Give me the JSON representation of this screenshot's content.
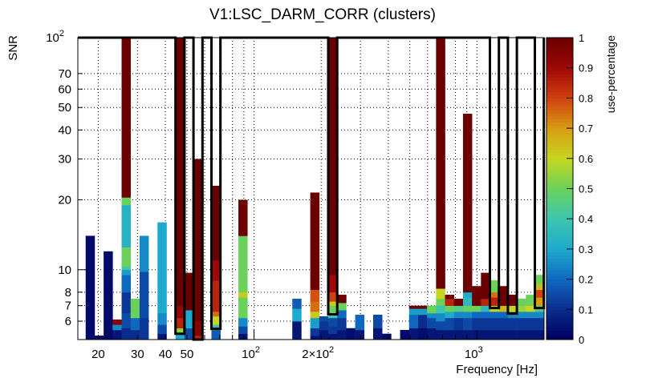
{
  "chart_data": {
    "type": "heatmap",
    "title": "V1:LSC_DARM_CORR (clusters)",
    "xlabel": "Frequency [Hz]",
    "ylabel": "SNR",
    "zlabel": "use-percentage",
    "xscale": "log",
    "yscale": "log",
    "xlim": [
      16.2,
      2000
    ],
    "ylim": [
      5,
      100
    ],
    "zlim": [
      0,
      1
    ],
    "grid": true,
    "x_tick_labels": [
      {
        "value": 20,
        "label": "20"
      },
      {
        "value": 30,
        "label": "30"
      },
      {
        "value": 40,
        "label": "40"
      },
      {
        "value": 50,
        "label": "50"
      },
      {
        "value": 100,
        "label": "10",
        "exp": "2"
      },
      {
        "value": 200,
        "label": "2×10",
        "exp": "2"
      },
      {
        "value": 1000,
        "label": "10",
        "exp": "3"
      }
    ],
    "x_grid_values": [
      20,
      30,
      40,
      50,
      60,
      70,
      80,
      90,
      100,
      200,
      300,
      400,
      500,
      600,
      700,
      800,
      900,
      1000
    ],
    "y_tick_labels": [
      {
        "value": 6,
        "label": "6"
      },
      {
        "value": 7,
        "label": "7"
      },
      {
        "value": 8,
        "label": "8"
      },
      {
        "value": 10,
        "label": "10"
      },
      {
        "value": 20,
        "label": "20"
      },
      {
        "value": 30,
        "label": "30"
      },
      {
        "value": 40,
        "label": "40"
      },
      {
        "value": 50,
        "label": "50"
      },
      {
        "value": 60,
        "label": "60"
      },
      {
        "value": 70,
        "label": "70"
      },
      {
        "value": 100,
        "label": "10",
        "exp": "2"
      }
    ],
    "z_tick_labels": [
      "0",
      "0.1",
      "0.2",
      "0.3",
      "0.4",
      "0.5",
      "0.6",
      "0.7",
      "0.8",
      "0.9",
      "1"
    ],
    "bins": {
      "log10_freq_start": 1.2446,
      "log10_freq_width": 0.0403,
      "count": 51
    },
    "colormap": [
      [
        0.0,
        "#000060"
      ],
      [
        0.1,
        "#0a2c8c"
      ],
      [
        0.2,
        "#0f68bf"
      ],
      [
        0.3,
        "#1eaacc"
      ],
      [
        0.4,
        "#3cc6b0"
      ],
      [
        0.5,
        "#6ad25a"
      ],
      [
        0.6,
        "#c6d620"
      ],
      [
        0.7,
        "#d89c12"
      ],
      [
        0.8,
        "#d04010"
      ],
      [
        0.9,
        "#a00808"
      ],
      [
        1.0,
        "#6a0000"
      ]
    ],
    "columns": [
      {
        "bin": 0,
        "cells": [
          [
            14,
            0.02
          ]
        ]
      },
      {
        "bin": 1,
        "cells": [
          [
            5.2,
            0.02
          ]
        ]
      },
      {
        "bin": 2,
        "cells": [
          [
            12,
            0.02
          ]
        ]
      },
      {
        "bin": 3,
        "cells": [
          [
            5.5,
            0.05
          ],
          [
            5.8,
            0.25
          ],
          [
            6.1,
            0.95
          ]
        ]
      },
      {
        "bin": 4,
        "cells": [
          [
            5.6,
            0.1
          ],
          [
            6.5,
            0.15
          ],
          [
            8,
            0.12
          ],
          [
            9.5,
            0.2
          ],
          [
            10,
            0.28
          ],
          [
            10.3,
            0.4
          ],
          [
            12.5,
            0.5
          ],
          [
            19,
            0.33
          ],
          [
            20.5,
            0.5
          ],
          [
            100,
            1
          ]
        ]
      },
      {
        "bin": 5,
        "cells": [
          [
            5.5,
            0.1
          ],
          [
            6.2,
            0.2
          ],
          [
            7.5,
            0.5
          ]
        ]
      },
      {
        "bin": 6,
        "cells": [
          [
            6.2,
            0.12
          ],
          [
            9.8,
            0.15
          ],
          [
            14,
            0.25
          ]
        ]
      },
      {
        "bin": 8,
        "cells": [
          [
            5.3,
            0.05
          ],
          [
            5.8,
            0.15
          ],
          [
            6.5,
            0.25
          ],
          [
            16,
            0.3
          ]
        ]
      },
      {
        "bin": 10,
        "cells": [
          [
            5.3,
            0.3
          ],
          [
            5.6,
            0.55
          ],
          [
            6.2,
            0.85
          ],
          [
            7,
            0.92
          ],
          [
            100,
            1
          ]
        ]
      },
      {
        "bin": 11,
        "cells": [
          [
            5.6,
            0.15
          ],
          [
            6.7,
            0.3
          ],
          [
            9.7,
            1
          ]
        ]
      },
      {
        "bin": 12,
        "cells": [
          [
            5.2,
            0.85
          ],
          [
            6.0,
            0.95
          ],
          [
            30,
            1
          ]
        ]
      },
      {
        "bin": 14,
        "cells": [
          [
            5.5,
            0.18
          ],
          [
            5.8,
            0.4
          ],
          [
            6.3,
            0.6
          ],
          [
            6.6,
            0.75
          ],
          [
            9,
            0.85
          ],
          [
            11,
            0.9
          ],
          [
            23,
            1
          ]
        ]
      },
      {
        "bin": 17,
        "cells": [
          [
            5.3,
            0.05
          ],
          [
            5.7,
            0.15
          ],
          [
            6.2,
            0.25
          ],
          [
            7.6,
            0.5
          ],
          [
            8,
            0.62
          ],
          [
            14,
            0.5
          ],
          [
            20,
            1
          ]
        ]
      },
      {
        "bin": 23,
        "cells": [
          [
            6,
            0.05
          ],
          [
            6.8,
            0.3
          ],
          [
            7.5,
            0.18
          ]
        ]
      },
      {
        "bin": 25,
        "cells": [
          [
            5.2,
            0.05
          ],
          [
            5.6,
            0.12
          ],
          [
            6.2,
            0.28
          ],
          [
            6.6,
            0.62
          ],
          [
            7.3,
            0.75
          ],
          [
            8.2,
            0.78
          ],
          [
            21.5,
            1
          ]
        ]
      },
      {
        "bin": 26,
        "cells": [
          [
            5.5,
            0.05
          ],
          [
            6.0,
            0.12
          ],
          [
            6.3,
            0.15
          ]
        ]
      },
      {
        "bin": 27,
        "cells": [
          [
            5.3,
            0.05
          ],
          [
            5.7,
            0.12
          ],
          [
            6.2,
            0.15
          ],
          [
            6.5,
            0.4
          ],
          [
            7,
            0.5
          ],
          [
            7.3,
            0.62
          ],
          [
            8,
            0.8
          ],
          [
            9.5,
            0.9
          ],
          [
            100,
            1
          ]
        ]
      },
      {
        "bin": 28,
        "cells": [
          [
            5.5,
            0.05
          ],
          [
            6.2,
            0.12
          ],
          [
            6.7,
            0.2
          ],
          [
            7.2,
            0.5
          ],
          [
            7.8,
            1
          ]
        ]
      },
      {
        "bin": 29,
        "cells": [
          [
            5.6,
            0.03
          ]
        ]
      },
      {
        "bin": 30,
        "cells": [
          [
            5.5,
            0.05
          ],
          [
            6.4,
            0.2
          ]
        ]
      },
      {
        "bin": 32,
        "cells": [
          [
            5.6,
            0.05
          ],
          [
            6.4,
            0.15
          ]
        ]
      },
      {
        "bin": 33,
        "cells": [
          [
            5.3,
            0.02
          ]
        ]
      },
      {
        "bin": 35,
        "cells": [
          [
            5.5,
            0.02
          ]
        ]
      },
      {
        "bin": 36,
        "cells": [
          [
            5.6,
            0.05
          ],
          [
            6.4,
            0.2
          ],
          [
            6.8,
            0.28
          ],
          [
            7,
            1
          ]
        ]
      },
      {
        "bin": 37,
        "cells": [
          [
            5.6,
            0.03
          ],
          [
            6.4,
            0.1
          ],
          [
            6.8,
            0.28
          ],
          [
            7,
            1
          ]
        ]
      },
      {
        "bin": 38,
        "cells": [
          [
            5.6,
            0.05
          ],
          [
            6.2,
            0.15
          ],
          [
            6.5,
            0.25
          ],
          [
            7,
            0.5
          ]
        ]
      },
      {
        "bin": 39,
        "cells": [
          [
            5.5,
            0.05
          ],
          [
            6.0,
            0.15
          ],
          [
            6.5,
            0.25
          ],
          [
            7.0,
            0.4
          ],
          [
            7.5,
            0.5
          ],
          [
            8.3,
            0.6
          ],
          [
            100,
            1
          ]
        ]
      },
      {
        "bin": 40,
        "cells": [
          [
            5.5,
            0.05
          ],
          [
            6.2,
            0.15
          ],
          [
            6.6,
            0.3
          ],
          [
            7,
            0.5
          ],
          [
            7.5,
            0.85
          ],
          [
            7.8,
            1
          ]
        ]
      },
      {
        "bin": 41,
        "cells": [
          [
            5.5,
            0.05
          ],
          [
            6.2,
            0.12
          ],
          [
            6.6,
            0.25
          ],
          [
            7,
            0.45
          ],
          [
            7.5,
            1
          ]
        ]
      },
      {
        "bin": 42,
        "cells": [
          [
            5.5,
            0.05
          ],
          [
            6.2,
            0.15
          ],
          [
            6.6,
            0.25
          ],
          [
            7,
            0.5
          ],
          [
            7.6,
            0.35
          ],
          [
            8,
            0.3
          ],
          [
            47,
            1
          ]
        ]
      },
      {
        "bin": 43,
        "cells": [
          [
            5.5,
            0.05
          ],
          [
            6.2,
            0.12
          ],
          [
            6.6,
            0.2
          ],
          [
            7,
            0.5
          ],
          [
            8.5,
            1
          ]
        ]
      },
      {
        "bin": 44,
        "cells": [
          [
            5.5,
            0.05
          ],
          [
            6.2,
            0.12
          ],
          [
            6.6,
            0.2
          ],
          [
            7,
            0.35
          ],
          [
            7.5,
            0.85
          ],
          [
            9.7,
            1
          ]
        ]
      },
      {
        "bin": 45,
        "cells": [
          [
            5.5,
            0.05
          ],
          [
            6.2,
            0.12
          ],
          [
            6.6,
            0.2
          ],
          [
            7,
            0.6
          ],
          [
            7.6,
            0.85
          ],
          [
            8,
            0.75
          ],
          [
            9,
            0.5
          ]
        ]
      },
      {
        "bin": 46,
        "cells": [
          [
            5.5,
            0.05
          ],
          [
            6.2,
            0.12
          ],
          [
            6.6,
            0.2
          ],
          [
            7,
            0.65
          ],
          [
            8.5,
            1
          ]
        ]
      },
      {
        "bin": 47,
        "cells": [
          [
            5.5,
            0.05
          ],
          [
            6.2,
            0.12
          ],
          [
            6.6,
            0.25
          ],
          [
            7,
            0.6
          ],
          [
            7.8,
            1
          ]
        ]
      },
      {
        "bin": 48,
        "cells": [
          [
            5.5,
            0.05
          ],
          [
            6.2,
            0.12
          ],
          [
            6.6,
            0.25
          ],
          [
            7,
            0.55
          ],
          [
            7.5,
            0.5
          ]
        ]
      },
      {
        "bin": 49,
        "cells": [
          [
            5.5,
            0.05
          ],
          [
            6.2,
            0.12
          ],
          [
            6.6,
            0.25
          ],
          [
            7,
            0.6
          ],
          [
            7.8,
            0.5
          ]
        ]
      },
      {
        "bin": 50,
        "cells": [
          [
            5.5,
            0.05
          ],
          [
            6.2,
            0.12
          ],
          [
            6.6,
            0.25
          ],
          [
            7,
            0.45
          ],
          [
            7.6,
            0.7
          ],
          [
            8.2,
            0.8
          ],
          [
            8.7,
            0.65
          ],
          [
            9.5,
            0.5
          ]
        ]
      }
    ],
    "contour_bin_snr": [
      [
        -0.9,
        100
      ],
      [
        10,
        100
      ],
      [
        10,
        5.3
      ],
      [
        11,
        5.3
      ],
      [
        11,
        100
      ],
      [
        12,
        100
      ],
      [
        12,
        5.0
      ],
      [
        13,
        5.0
      ],
      [
        13,
        100
      ],
      [
        14,
        100
      ],
      [
        14,
        5.56
      ],
      [
        15,
        5.56
      ],
      [
        15,
        100
      ],
      [
        27,
        100
      ],
      [
        27,
        6.42
      ],
      [
        28,
        6.42
      ],
      [
        28,
        100
      ],
      [
        45,
        100
      ],
      [
        45,
        6.84
      ],
      [
        46,
        6.84
      ],
      [
        46,
        100
      ],
      [
        47,
        100
      ],
      [
        47,
        6.47
      ],
      [
        48,
        6.47
      ],
      [
        48,
        100
      ],
      [
        50,
        100
      ],
      [
        50,
        6.84
      ],
      [
        51,
        6.84
      ],
      [
        51,
        100
      ]
    ]
  }
}
